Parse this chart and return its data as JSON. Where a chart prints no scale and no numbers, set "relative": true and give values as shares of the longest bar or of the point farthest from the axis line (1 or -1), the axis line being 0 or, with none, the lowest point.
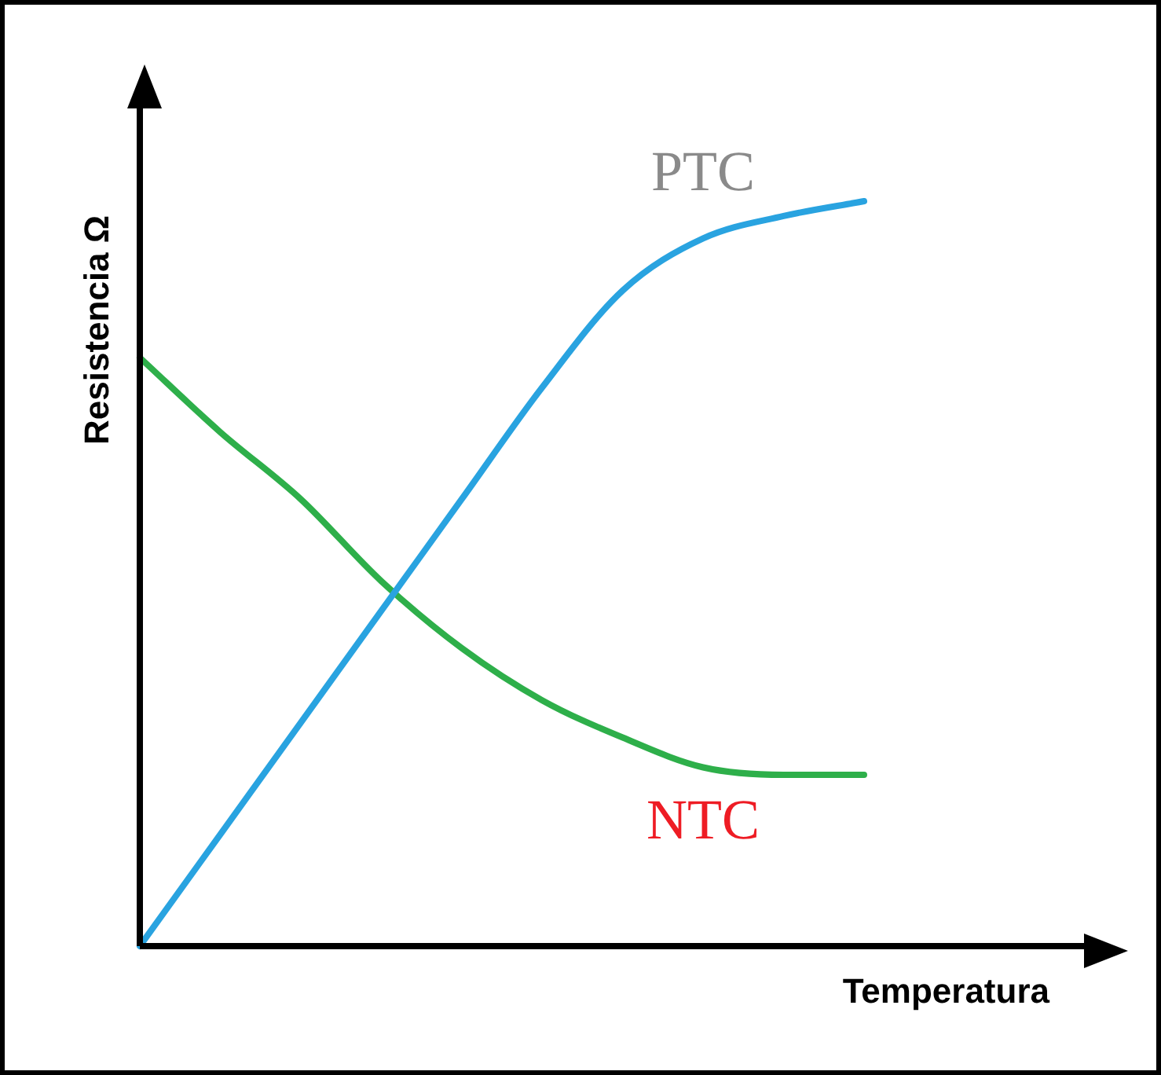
{
  "chart_data": {
    "type": "line",
    "relative": true,
    "xlabel": "Temperatura",
    "ylabel": "Resistencia Ω",
    "categories": [
      null,
      null,
      null,
      null,
      null,
      null,
      null,
      null,
      null,
      null
    ],
    "series": [
      {
        "name": "PTC",
        "color": "#29a3e0",
        "values": [
          0,
          0.15,
          0.3,
          0.45,
          0.6,
          0.75,
          0.88,
          0.95,
          0.98,
          1
        ]
      },
      {
        "name": "NTC",
        "color": "#2eaf4a",
        "values": [
          0.79,
          0.69,
          0.6,
          0.49,
          0.4,
          0.33,
          0.28,
          0.24,
          0.23,
          0.23
        ]
      }
    ],
    "legend": false,
    "marker": "none",
    "line_style": "solid"
  }
}
